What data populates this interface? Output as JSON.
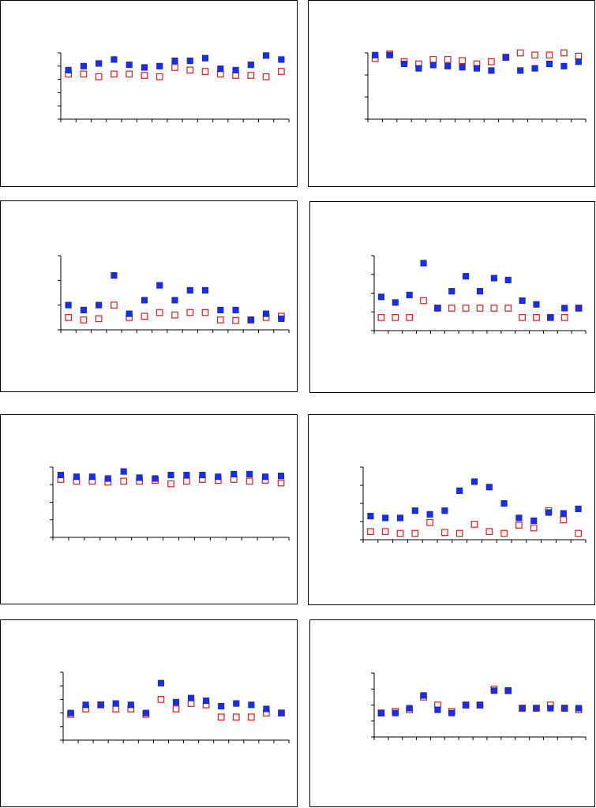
{
  "chart_data": [
    {
      "type": "scatter",
      "ylim": [
        0,
        5
      ],
      "yticks": [
        0,
        1,
        2,
        3,
        4,
        5
      ],
      "series": [
        {
          "style": "filled",
          "color": "#1a2fe0",
          "values": [
            3.7,
            4.0,
            4.2,
            4.5,
            4.1,
            3.9,
            4.0,
            4.4,
            4.4,
            4.6,
            3.8,
            3.7,
            4.1,
            4.8,
            4.5
          ]
        },
        {
          "style": "open",
          "color": "#e01a1a",
          "values": [
            3.4,
            3.4,
            3.2,
            3.4,
            3.4,
            3.3,
            3.2,
            3.9,
            3.7,
            3.6,
            3.4,
            3.3,
            3.3,
            3.2,
            3.6
          ]
        }
      ]
    },
    {
      "type": "scatter",
      "ylim": [
        0,
        3
      ],
      "yticks": [
        0,
        1,
        2,
        3
      ],
      "series": [
        {
          "style": "filled",
          "color": "#1a2fe0",
          "values": [
            2.9,
            2.9,
            2.5,
            2.3,
            2.45,
            2.4,
            2.35,
            2.3,
            2.2,
            2.8,
            2.2,
            2.3,
            2.5,
            2.4,
            2.6
          ]
        },
        {
          "style": "open",
          "color": "#e01a1a",
          "values": [
            2.75,
            2.95,
            2.6,
            2.5,
            2.7,
            2.7,
            2.65,
            2.5,
            2.6,
            2.8,
            3.0,
            2.9,
            2.9,
            3.0,
            2.85
          ]
        }
      ]
    },
    {
      "type": "scatter",
      "ylim": [
        0,
        3
      ],
      "yticks": [
        0,
        1,
        2,
        3
      ],
      "series": [
        {
          "style": "filled",
          "color": "#1a2fe0",
          "values": [
            1.0,
            0.8,
            1.0,
            2.2,
            0.65,
            1.2,
            1.8,
            1.2,
            1.6,
            1.6,
            0.8,
            0.8,
            0.4,
            0.65,
            0.45
          ]
        },
        {
          "style": "open",
          "color": "#e01a1a",
          "values": [
            0.5,
            0.4,
            0.45,
            1.0,
            0.5,
            0.55,
            0.7,
            0.6,
            0.7,
            0.7,
            0.4,
            0.38,
            0.4,
            0.5,
            0.55
          ]
        }
      ]
    },
    {
      "type": "scatter",
      "ylim": [
        0,
        4
      ],
      "yticks": [
        0,
        1,
        2,
        3,
        4
      ],
      "series": [
        {
          "style": "filled",
          "color": "#1a2fe0",
          "values": [
            1.8,
            1.5,
            1.9,
            3.6,
            1.2,
            2.1,
            2.9,
            2.1,
            2.8,
            2.7,
            1.6,
            1.4,
            0.7,
            1.2,
            1.2
          ]
        },
        {
          "style": "open",
          "color": "#e01a1a",
          "values": [
            0.7,
            0.7,
            0.7,
            1.6,
            1.2,
            1.2,
            1.2,
            1.2,
            1.2,
            1.2,
            0.7,
            0.7,
            0.7,
            0.7,
            1.2
          ]
        }
      ]
    },
    {
      "type": "scatter",
      "ylim": [
        0,
        4
      ],
      "yticks": [
        0,
        1,
        2,
        3,
        4
      ],
      "series": [
        {
          "style": "filled",
          "color": "#1a2fe0",
          "values": [
            3.55,
            3.45,
            3.45,
            3.35,
            3.75,
            3.4,
            3.35,
            3.55,
            3.55,
            3.55,
            3.45,
            3.6,
            3.6,
            3.45,
            3.5
          ]
        },
        {
          "style": "open",
          "color": "#e01a1a",
          "values": [
            3.3,
            3.2,
            3.2,
            3.15,
            3.2,
            3.2,
            3.25,
            3.05,
            3.2,
            3.3,
            3.25,
            3.3,
            3.2,
            3.25,
            3.1
          ]
        }
      ]
    },
    {
      "type": "scatter",
      "ylim": [
        0,
        4
      ],
      "yticks": [
        0,
        1,
        2,
        3,
        4
      ],
      "series": [
        {
          "style": "filled",
          "color": "#1a2fe0",
          "values": [
            1.3,
            1.2,
            1.2,
            1.6,
            1.4,
            1.6,
            2.7,
            3.2,
            2.9,
            2.0,
            1.2,
            1.05,
            1.5,
            1.45,
            1.7
          ]
        },
        {
          "style": "open",
          "color": "#e01a1a",
          "values": [
            0.45,
            0.45,
            0.35,
            0.35,
            0.95,
            0.4,
            0.35,
            0.85,
            0.45,
            0.35,
            0.8,
            0.65,
            1.6,
            1.1,
            0.35
          ]
        }
      ]
    },
    {
      "type": "scatter",
      "ylim": [
        0,
        5
      ],
      "yticks": [
        0,
        1,
        2,
        3,
        4,
        5
      ],
      "series": [
        {
          "style": "filled",
          "color": "#1a2fe0",
          "values": [
            2.0,
            2.6,
            2.6,
            2.7,
            2.6,
            2.0,
            4.2,
            2.8,
            3.1,
            2.9,
            2.5,
            2.7,
            2.6,
            2.3,
            2.0
          ]
        },
        {
          "style": "open",
          "color": "#e01a1a",
          "values": [
            1.9,
            2.3,
            2.6,
            2.3,
            2.3,
            1.9,
            3.0,
            2.3,
            2.7,
            2.6,
            1.7,
            1.7,
            1.7,
            2.0,
            2.0
          ]
        }
      ]
    },
    {
      "type": "scatter",
      "ylim": [
        0,
        4
      ],
      "yticks": [
        0,
        1,
        2,
        3,
        4
      ],
      "series": [
        {
          "style": "filled",
          "color": "#1a2fe0",
          "values": [
            1.5,
            1.5,
            1.8,
            2.6,
            1.7,
            1.5,
            2.0,
            2.0,
            2.9,
            2.9,
            1.8,
            1.8,
            1.8,
            1.8,
            1.8
          ]
        },
        {
          "style": "open",
          "color": "#e01a1a",
          "values": [
            1.5,
            1.6,
            1.7,
            2.5,
            2.0,
            1.6,
            2.0,
            2.0,
            3.0,
            2.9,
            1.8,
            1.8,
            2.0,
            1.8,
            1.7
          ]
        }
      ]
    }
  ]
}
